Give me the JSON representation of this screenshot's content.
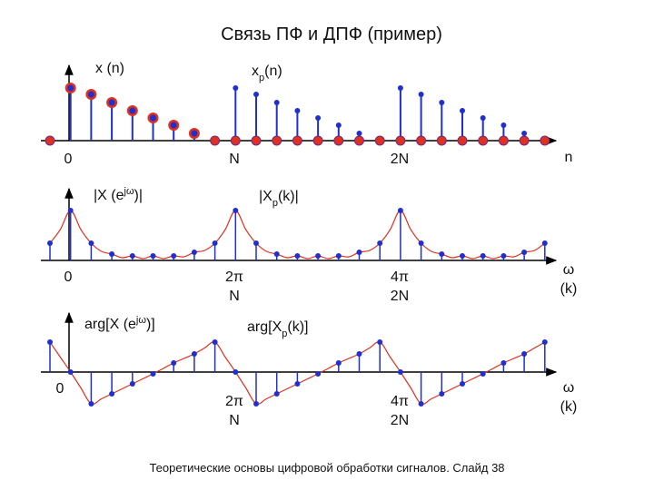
{
  "title": "Связь ПФ и ДПФ (пример)",
  "panels": [
    {
      "signal_label": [
        "x (n)"
      ],
      "periodic_label": [
        "x",
        "p",
        "(n)"
      ],
      "origin": "0",
      "mark1": [
        "N"
      ],
      "mark2": [
        "2N"
      ],
      "axis": [
        "n"
      ]
    },
    {
      "signal_label": [
        "|X (e",
        "jω",
        ")|"
      ],
      "periodic_label": [
        "|X",
        "p",
        "(k)|"
      ],
      "origin": "0",
      "mark1": [
        "2π",
        "N"
      ],
      "mark2": [
        "4π",
        "2N"
      ],
      "axis": [
        "ω",
        "(k)"
      ]
    },
    {
      "signal_label": [
        "arg[X (e",
        "jω",
        ")]"
      ],
      "periodic_label": [
        "arg[X",
        "p",
        "(k)]"
      ],
      "origin": "0",
      "mark1": [
        "2π",
        "N"
      ],
      "mark2": [
        "4π",
        "2N"
      ],
      "axis": [
        "ω",
        "(k)"
      ]
    }
  ],
  "footer": "Теоретические основы цифровой обработки сигналов. Слайд 38"
}
